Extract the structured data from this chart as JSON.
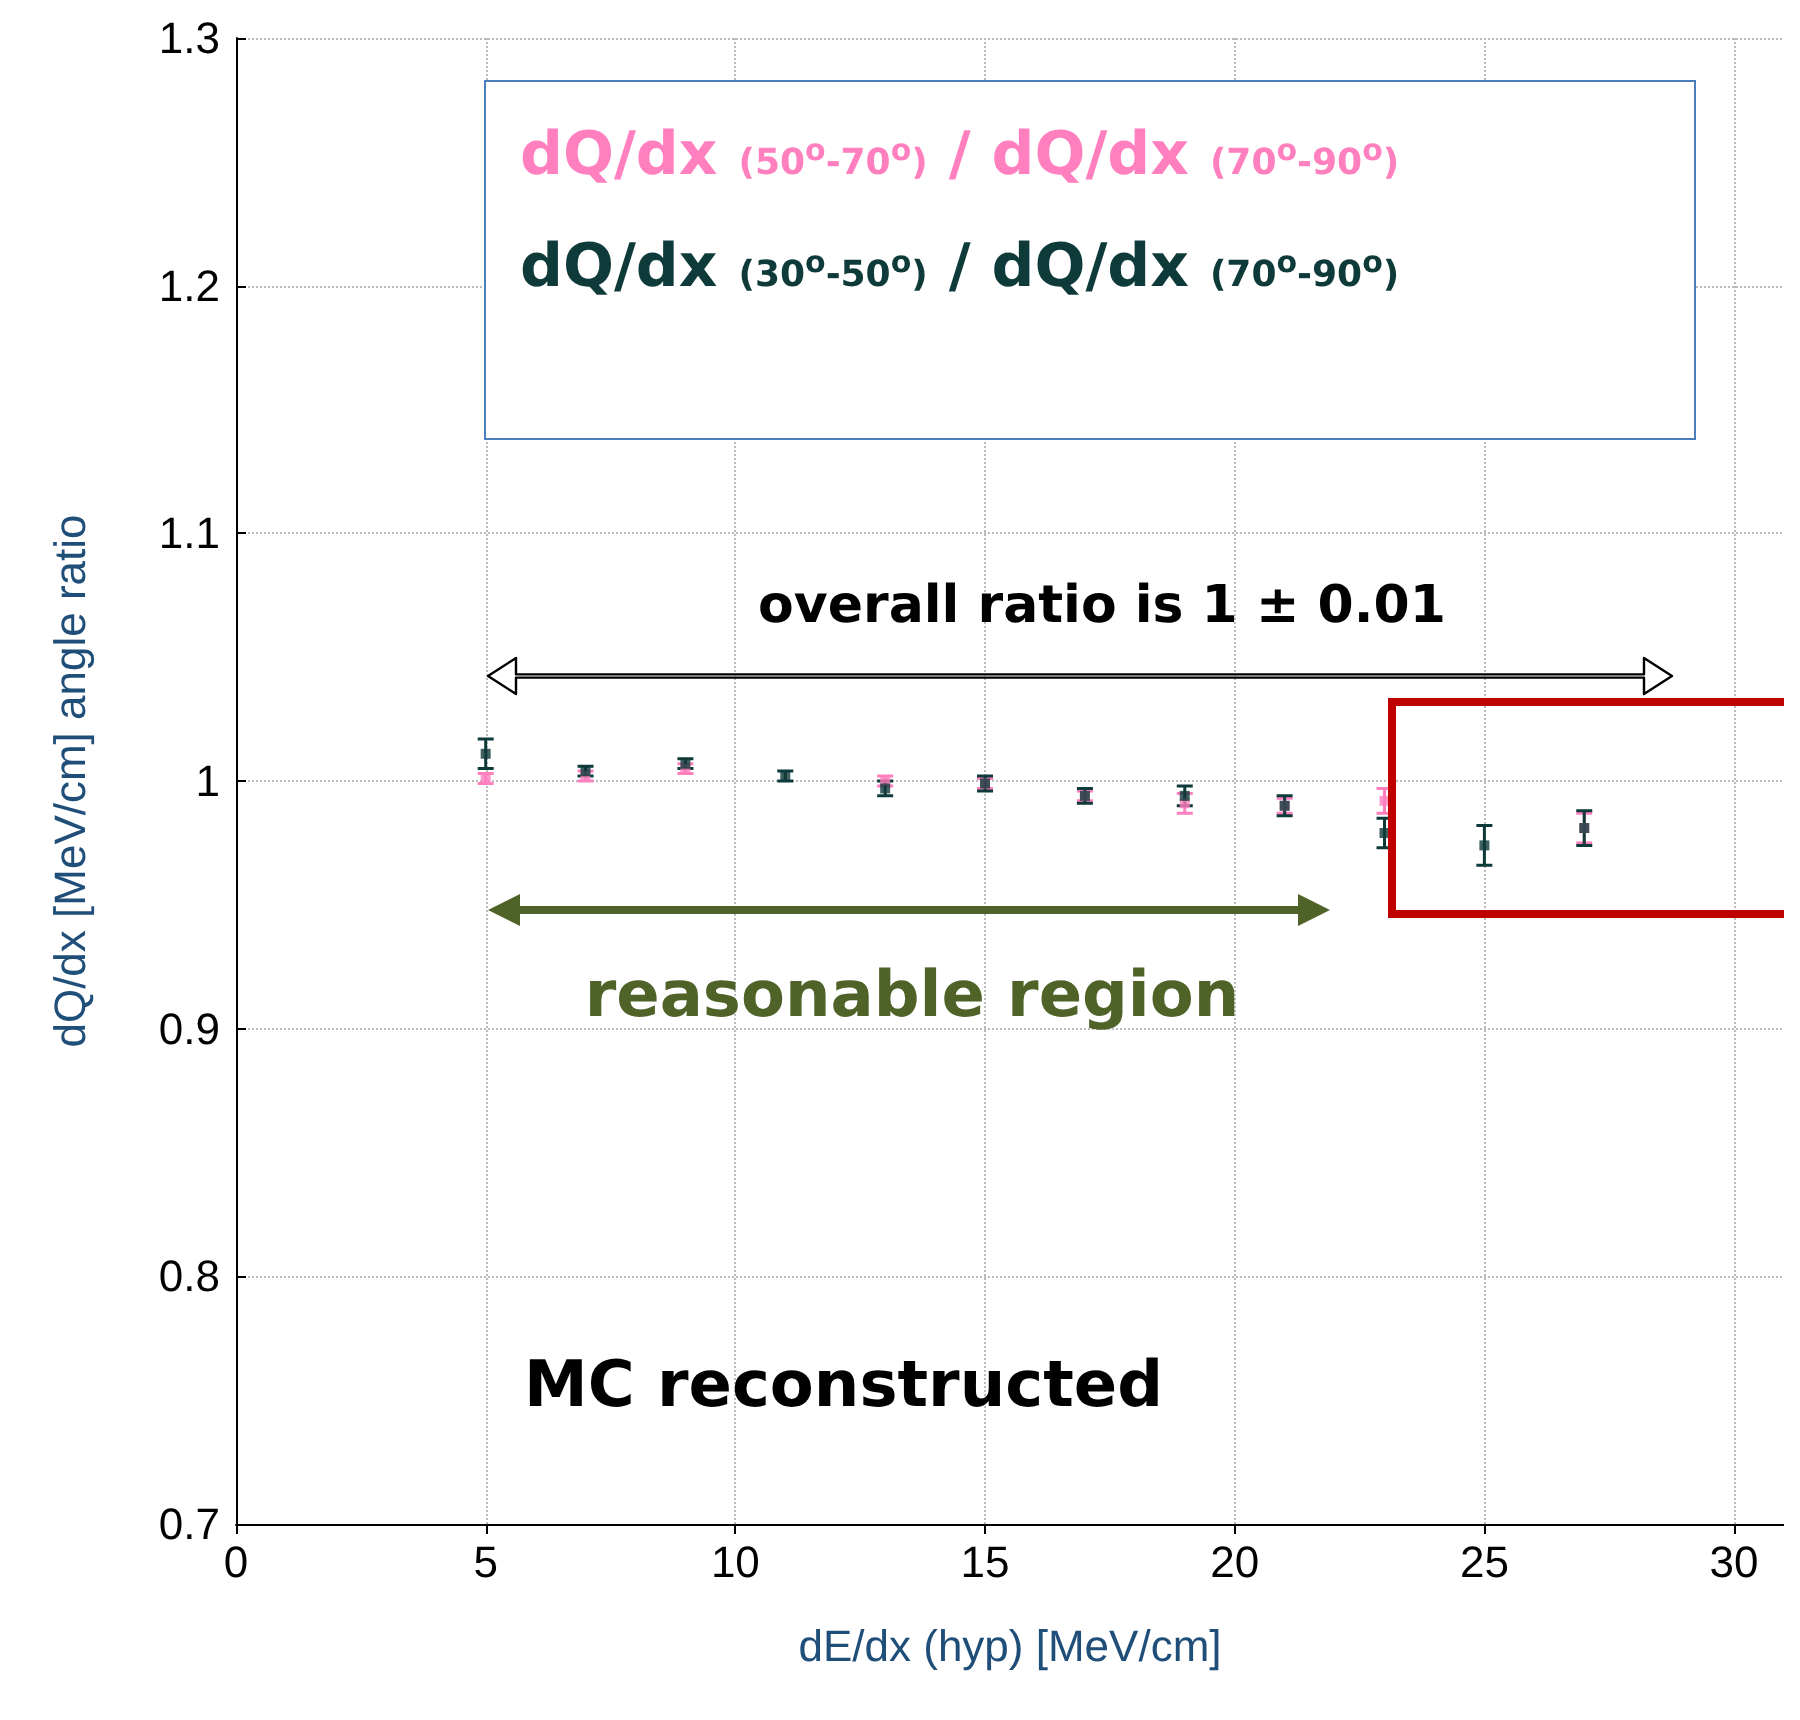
{
  "chart_data": {
    "type": "scatter",
    "xlabel": "dE/dx (hyp) [MeV/cm]",
    "ylabel": "dQ/dx [MeV/cm] angle ratio",
    "x": [
      5,
      7,
      9,
      11,
      13,
      15,
      17,
      19,
      21,
      23,
      25,
      27
    ],
    "series": [
      {
        "name": "dQ/dx (50$^{o}$-70$^{o}$) / dQ/dx (70$^{o}$-90$^{o}$)",
        "color": "#ff7fbf",
        "values": [
          1.001,
          1.002,
          1.005,
          null,
          1.0,
          0.999,
          0.994,
          0.991,
          0.99,
          0.992,
          null,
          0.981
        ],
        "errors": [
          0.002,
          0.002,
          0.002,
          null,
          0.002,
          0.002,
          0.002,
          0.004,
          0.003,
          0.005,
          null,
          0.006
        ]
      },
      {
        "name": "dQ/dx (30$^{o}$-50$^{o}$) / dQ/dx (70$^{o}$-90$^{o}$)",
        "color": "#0f3a3a",
        "values": [
          1.011,
          1.004,
          1.007,
          1.002,
          0.997,
          0.999,
          0.994,
          0.994,
          0.99,
          0.979,
          0.974,
          0.981
        ],
        "errors": [
          0.006,
          0.002,
          0.002,
          0.002,
          0.003,
          0.003,
          0.003,
          0.004,
          0.004,
          0.006,
          0.008,
          0.007
        ]
      }
    ],
    "xlim": [
      0,
      31
    ],
    "xticks": [
      0,
      5,
      10,
      15,
      20,
      25,
      30
    ],
    "ylim": [
      0.7,
      1.3
    ],
    "yticks": [
      0.7,
      0.8,
      0.9,
      1,
      1.1,
      1.2,
      1.3
    ],
    "annotations": [
      "overall ratio is 1 ± 0.01",
      "reasonable region",
      "MC reconstructed"
    ],
    "grid": true
  }
}
